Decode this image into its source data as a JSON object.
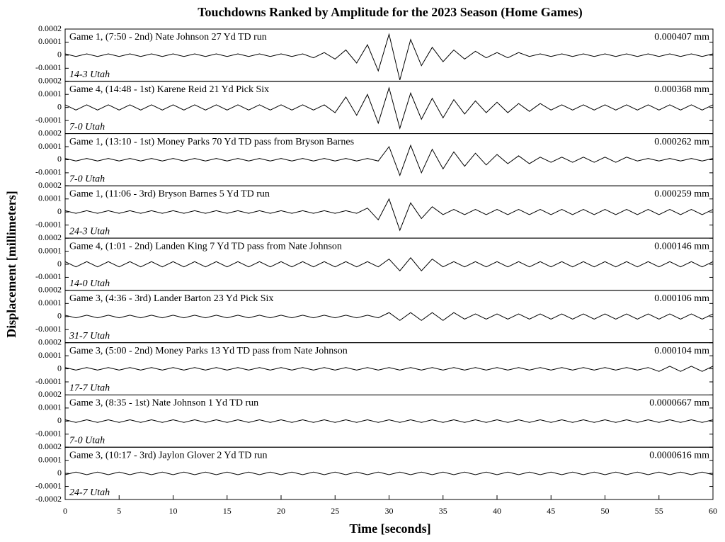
{
  "chart_data": {
    "type": "line",
    "title": "Touchdowns Ranked by Amplitude for the 2023 Season (Home Games)",
    "xlabel": "Time [seconds]",
    "ylabel": "Displacement [millimeters]",
    "color": "#000000",
    "xlim": [
      0,
      60
    ],
    "xticks": [
      0,
      5,
      10,
      15,
      20,
      25,
      30,
      35,
      40,
      45,
      50,
      55,
      60
    ],
    "ylim": [
      -0.0002,
      0.0002
    ],
    "yticks": [
      0.0002,
      0.0001,
      0,
      -0.0001,
      -0.0002
    ],
    "x": [
      0,
      1,
      2,
      3,
      4,
      5,
      6,
      7,
      8,
      9,
      10,
      11,
      12,
      13,
      14,
      15,
      16,
      17,
      18,
      19,
      20,
      21,
      22,
      23,
      24,
      25,
      26,
      27,
      28,
      29,
      30,
      31,
      32,
      33,
      34,
      35,
      36,
      37,
      38,
      39,
      40,
      41,
      42,
      43,
      44,
      45,
      46,
      47,
      48,
      49,
      50,
      51,
      52,
      53,
      54,
      55,
      56,
      57,
      58,
      59,
      60
    ],
    "panels": [
      {
        "label": "Game 1, (7:50 - 2nd) Nate Johnson 27 Yd TD run",
        "score": "14-3 Utah",
        "amplitude": "0.000407 mm",
        "values": [
          1e-05,
          -1e-05,
          1e-05,
          -1e-05,
          1e-05,
          -1e-05,
          1e-05,
          -1e-05,
          1e-05,
          -1e-05,
          1e-05,
          -1e-05,
          1e-05,
          -1e-05,
          1e-05,
          -1e-05,
          1e-05,
          -1e-05,
          1e-05,
          -1e-05,
          1e-05,
          -1e-05,
          1e-05,
          -2e-05,
          2e-05,
          -3e-05,
          4e-05,
          -6e-05,
          8e-05,
          -0.00012,
          0.00016,
          -0.00019,
          0.00012,
          -8e-05,
          6e-05,
          -5e-05,
          4e-05,
          -3e-05,
          3e-05,
          -2e-05,
          2e-05,
          -2e-05,
          2e-05,
          -1e-05,
          1e-05,
          -1e-05,
          1e-05,
          -1e-05,
          1e-05,
          -1e-05,
          1e-05,
          -1e-05,
          1e-05,
          -1e-05,
          1e-05,
          -1e-05,
          1e-05,
          -1e-05,
          1e-05,
          -1e-05,
          1e-05
        ]
      },
      {
        "label": "Game 4, (14:48 - 1st) Karene Reid 21 Yd Pick Six",
        "score": "7-0 Utah",
        "amplitude": "0.000368 mm",
        "values": [
          2e-05,
          -2e-05,
          2e-05,
          -2e-05,
          2e-05,
          -2e-05,
          2e-05,
          -2e-05,
          2e-05,
          -2e-05,
          2e-05,
          -2e-05,
          2e-05,
          -2e-05,
          2e-05,
          -2e-05,
          2e-05,
          -2e-05,
          2e-05,
          -2e-05,
          2e-05,
          -2e-05,
          2e-05,
          -2e-05,
          2e-05,
          -4e-05,
          8e-05,
          -6e-05,
          0.0001,
          -0.00012,
          0.00015,
          -0.00016,
          0.00011,
          -9e-05,
          7e-05,
          -8e-05,
          6e-05,
          -5e-05,
          5e-05,
          -4e-05,
          4e-05,
          -4e-05,
          3e-05,
          -3e-05,
          3e-05,
          -2e-05,
          2e-05,
          -2e-05,
          2e-05,
          -2e-05,
          2e-05,
          -2e-05,
          2e-05,
          -2e-05,
          2e-05,
          -2e-05,
          2e-05,
          -2e-05,
          2e-05,
          -2e-05,
          2e-05
        ]
      },
      {
        "label": "Game 1, (13:10 - 1st) Money Parks 70 Yd TD pass from Bryson Barnes",
        "score": "7-0 Utah",
        "amplitude": "0.000262 mm",
        "values": [
          1e-05,
          -1e-05,
          1e-05,
          -1e-05,
          1e-05,
          -1e-05,
          1e-05,
          -1e-05,
          1e-05,
          -1e-05,
          1e-05,
          -1e-05,
          1e-05,
          -1e-05,
          1e-05,
          -1e-05,
          1e-05,
          -1e-05,
          1e-05,
          -1e-05,
          1e-05,
          -1e-05,
          1e-05,
          -1e-05,
          1e-05,
          -1e-05,
          1e-05,
          -1e-05,
          1e-05,
          -1e-05,
          0.0001,
          -0.00012,
          0.00011,
          -0.0001,
          8e-05,
          -7e-05,
          6e-05,
          -5e-05,
          5e-05,
          -4e-05,
          4e-05,
          -3e-05,
          3e-05,
          -3e-05,
          2e-05,
          -2e-05,
          2e-05,
          -2e-05,
          2e-05,
          -2e-05,
          2e-05,
          -2e-05,
          2e-05,
          -1e-05,
          1e-05,
          -1e-05,
          1e-05,
          -1e-05,
          1e-05,
          -1e-05,
          1e-05
        ]
      },
      {
        "label": "Game 1, (11:06 - 3rd) Bryson Barnes 5 Yd TD run",
        "score": "24-3 Utah",
        "amplitude": "0.000259 mm",
        "values": [
          1e-05,
          -1e-05,
          1e-05,
          -1e-05,
          1e-05,
          -1e-05,
          1e-05,
          -1e-05,
          1e-05,
          -1e-05,
          1e-05,
          -1e-05,
          1e-05,
          -1e-05,
          1e-05,
          -1e-05,
          1e-05,
          -1e-05,
          1e-05,
          -1e-05,
          1e-05,
          -1e-05,
          1e-05,
          -1e-05,
          1e-05,
          -1e-05,
          1e-05,
          -1e-05,
          3e-05,
          -6e-05,
          0.0001,
          -0.00014,
          7e-05,
          -5e-05,
          4e-05,
          -2e-05,
          2e-05,
          -2e-05,
          2e-05,
          -2e-05,
          2e-05,
          -2e-05,
          2e-05,
          -2e-05,
          2e-05,
          -2e-05,
          2e-05,
          -2e-05,
          2e-05,
          -2e-05,
          2e-05,
          -2e-05,
          2e-05,
          -2e-05,
          2e-05,
          -2e-05,
          2e-05,
          -2e-05,
          2e-05,
          -2e-05,
          2e-05
        ]
      },
      {
        "label": "Game 4, (1:01 - 2nd) Landen King 7 Yd TD pass from Nate Johnson",
        "score": "14-0 Utah",
        "amplitude": "0.000146 mm",
        "values": [
          2e-05,
          -2e-05,
          2e-05,
          -2e-05,
          2e-05,
          -2e-05,
          2e-05,
          -2e-05,
          2e-05,
          -2e-05,
          2e-05,
          -2e-05,
          2e-05,
          -2e-05,
          2e-05,
          -2e-05,
          2e-05,
          -2e-05,
          2e-05,
          -2e-05,
          2e-05,
          -2e-05,
          2e-05,
          -2e-05,
          2e-05,
          -2e-05,
          2e-05,
          -2e-05,
          2e-05,
          -2e-05,
          4e-05,
          -5e-05,
          5e-05,
          -5e-05,
          4e-05,
          -2e-05,
          2e-05,
          -2e-05,
          2e-05,
          -2e-05,
          2e-05,
          -2e-05,
          2e-05,
          -2e-05,
          2e-05,
          -2e-05,
          2e-05,
          -2e-05,
          2e-05,
          -2e-05,
          2e-05,
          -2e-05,
          2e-05,
          -2e-05,
          2e-05,
          -2e-05,
          2e-05,
          -2e-05,
          2e-05,
          -2e-05,
          2e-05
        ]
      },
      {
        "label": "Game 3, (4:36 - 3rd) Lander Barton 23 Yd Pick Six",
        "score": "31-7 Utah",
        "amplitude": "0.000106 mm",
        "values": [
          1e-05,
          -1e-05,
          1e-05,
          -1e-05,
          1e-05,
          -1e-05,
          1e-05,
          -1e-05,
          1e-05,
          -1e-05,
          1e-05,
          -1e-05,
          1e-05,
          -1e-05,
          1e-05,
          -1e-05,
          1e-05,
          -1e-05,
          1e-05,
          -1e-05,
          1e-05,
          -1e-05,
          1e-05,
          -1e-05,
          1e-05,
          -1e-05,
          1e-05,
          -1e-05,
          1e-05,
          -1e-05,
          3e-05,
          -3e-05,
          3e-05,
          -3e-05,
          3e-05,
          -3e-05,
          3e-05,
          -2e-05,
          2e-05,
          -2e-05,
          2e-05,
          -2e-05,
          2e-05,
          -2e-05,
          2e-05,
          -2e-05,
          2e-05,
          -2e-05,
          2e-05,
          -2e-05,
          2e-05,
          -2e-05,
          2e-05,
          -2e-05,
          2e-05,
          -2e-05,
          2e-05,
          -2e-05,
          2e-05,
          -2e-05,
          2e-05
        ]
      },
      {
        "label": "Game 3, (5:00 - 2nd) Money Parks 13 Yd TD pass from Nate Johnson",
        "score": "17-7 Utah",
        "amplitude": "0.000104 mm",
        "values": [
          1e-05,
          -1e-05,
          1e-05,
          -1e-05,
          1e-05,
          -1e-05,
          1e-05,
          -1e-05,
          1e-05,
          -1e-05,
          1e-05,
          -1e-05,
          1e-05,
          -1e-05,
          1e-05,
          -1e-05,
          1e-05,
          -1e-05,
          1e-05,
          -1e-05,
          1e-05,
          -1e-05,
          1e-05,
          -1e-05,
          1e-05,
          -1e-05,
          1e-05,
          -1e-05,
          1e-05,
          -1e-05,
          1e-05,
          -1e-05,
          1e-05,
          -1e-05,
          1e-05,
          -1e-05,
          1e-05,
          -1e-05,
          1e-05,
          -1e-05,
          1e-05,
          -1e-05,
          1e-05,
          -1e-05,
          1e-05,
          -1e-05,
          1e-05,
          -1e-05,
          1e-05,
          -1e-05,
          1e-05,
          -1e-05,
          1e-05,
          -1e-05,
          1e-05,
          -2e-05,
          2e-05,
          -2e-05,
          2e-05,
          -2e-05,
          2e-05
        ]
      },
      {
        "label": "Game 3, (8:35 - 1st) Nate Johnson 1 Yd TD run",
        "score": "7-0 Utah",
        "amplitude": "0.0000667 mm",
        "values": [
          1e-05,
          -1e-05,
          1e-05,
          -1e-05,
          1e-05,
          -1e-05,
          1e-05,
          -1e-05,
          1e-05,
          -1e-05,
          1e-05,
          -1e-05,
          1e-05,
          -1e-05,
          1e-05,
          -1e-05,
          1e-05,
          -1e-05,
          1e-05,
          -1e-05,
          1e-05,
          -1e-05,
          1e-05,
          -1e-05,
          1e-05,
          -1e-05,
          1e-05,
          -1e-05,
          1e-05,
          -1e-05,
          1e-05,
          -1e-05,
          1e-05,
          -1e-05,
          1e-05,
          -1e-05,
          1e-05,
          -1e-05,
          1e-05,
          -1e-05,
          1e-05,
          -1e-05,
          1e-05,
          -1e-05,
          1e-05,
          -1e-05,
          1e-05,
          -1e-05,
          1e-05,
          -1e-05,
          1e-05,
          -1e-05,
          1e-05,
          -1e-05,
          1e-05,
          -1e-05,
          1e-05,
          -1e-05,
          1e-05,
          -1e-05,
          1e-05
        ]
      },
      {
        "label": "Game 3, (10:17 - 3rd) Jaylon Glover 2 Yd TD run",
        "score": "24-7 Utah",
        "amplitude": "0.0000616 mm",
        "values": [
          -1e-05,
          1e-05,
          -1e-05,
          1e-05,
          -1e-05,
          1e-05,
          -1e-05,
          1e-05,
          -1e-05,
          1e-05,
          -1e-05,
          1e-05,
          -1e-05,
          1e-05,
          -1e-05,
          1e-05,
          -1e-05,
          1e-05,
          -1e-05,
          1e-05,
          -1e-05,
          1e-05,
          -1e-05,
          1e-05,
          -1e-05,
          1e-05,
          -1e-05,
          1e-05,
          -1e-05,
          1e-05,
          -1e-05,
          1e-05,
          -1e-05,
          1e-05,
          -1e-05,
          1e-05,
          -1e-05,
          1e-05,
          -1e-05,
          1e-05,
          -1e-05,
          1e-05,
          -1e-05,
          1e-05,
          -1e-05,
          1e-05,
          -1e-05,
          1e-05,
          -1e-05,
          1e-05,
          -1e-05,
          1e-05,
          -1e-05,
          1e-05,
          -1e-05,
          1e-05,
          -1e-05,
          1e-05,
          -1e-05,
          1e-05,
          -1e-05
        ]
      }
    ]
  }
}
